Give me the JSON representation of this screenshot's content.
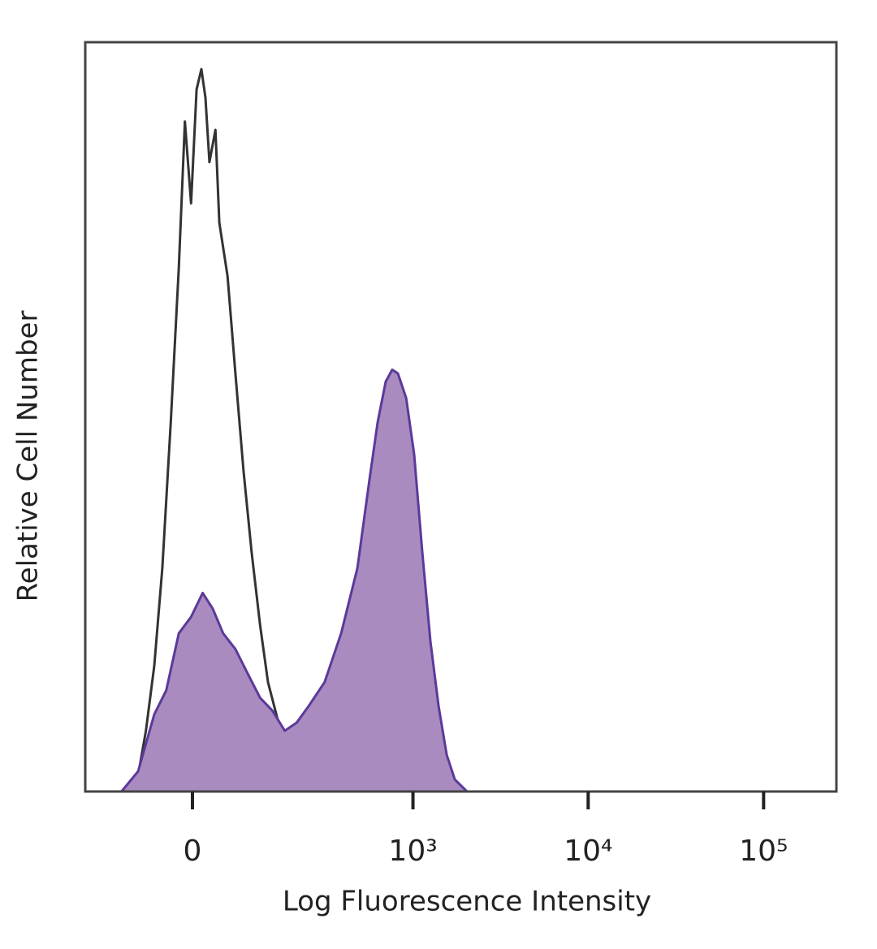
{
  "chart_data": {
    "type": "histogram-overlay",
    "x_label": "Log Fluorescence Intensity",
    "y_label": "Relative Cell Number",
    "xscale": "biexponential",
    "xlim": [
      -213,
      260000
    ],
    "xticks": [
      0,
      {
        "value": 1000,
        "label": "10³"
      },
      {
        "value": 10000,
        "label": "10⁴"
      },
      {
        "value": 100000,
        "label": "10⁵"
      }
    ],
    "ylim": [
      0,
      100
    ],
    "series": [
      {
        "color": "#333333",
        "fill": "none",
        "x": [
          -119,
          -86,
          -72,
          -58,
          -45,
          -32,
          -20,
          -11,
          -2,
          6,
          13,
          19,
          25,
          34,
          40,
          53,
          66,
          80,
          95,
          112,
          129,
          159,
          192,
          230,
          272,
          342
        ],
        "values": [
          0,
          2.2,
          8.1,
          16.8,
          29.8,
          49.3,
          69.9,
          89.4,
          78.5,
          93.7,
          96.4,
          92.6,
          84.0,
          88.3,
          75.9,
          68.8,
          55.8,
          42.9,
          32.0,
          22.2,
          14.6,
          8.1,
          3.8,
          1.3,
          0.2,
          0
        ]
      },
      {
        "color": "#5b3a99",
        "fill": "#a98bc0",
        "x": [
          -119,
          -86,
          -58,
          -39,
          -20,
          -2,
          15,
          30,
          46,
          66,
          88,
          112,
          139,
          170,
          204,
          243,
          305,
          383,
          477,
          562,
          626,
          697,
          760,
          819,
          914,
          1016,
          1131,
          1260,
          1401,
          1560,
          1735,
          2037,
          2661
        ],
        "values": [
          0,
          2.7,
          10.3,
          13.5,
          21.1,
          23.3,
          26.5,
          24.4,
          21.1,
          19.0,
          15.7,
          12.5,
          10.8,
          8.1,
          9.2,
          11.4,
          14.6,
          21.1,
          29.8,
          41.7,
          49.3,
          54.7,
          56.3,
          55.8,
          52.5,
          45.0,
          32.0,
          20.0,
          11.4,
          4.9,
          1.6,
          0,
          0
        ]
      }
    ]
  }
}
